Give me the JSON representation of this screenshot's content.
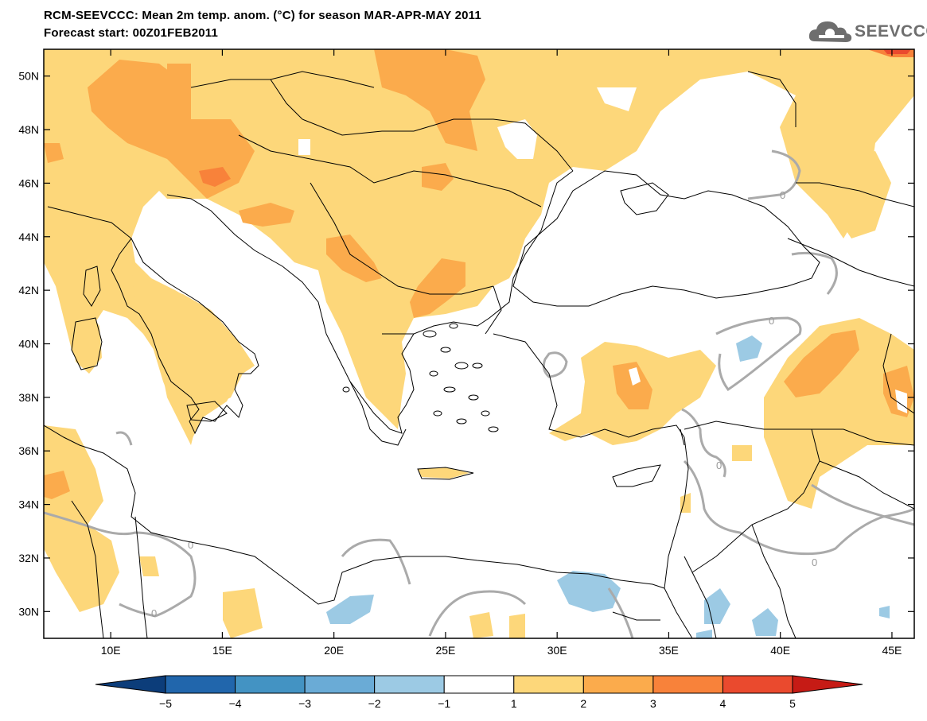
{
  "header": {
    "title_line1": "RCM-SEEVCCC: Mean 2m temp. anom. (°C) for season MAR-APR-MAY 2011",
    "title_line2": "Forecast start: 00Z01FEB2011"
  },
  "logo": {
    "text": "SEEVCCC",
    "icon": "cloud-icon"
  },
  "map": {
    "lon_range": [
      7,
      46
    ],
    "lat_range": [
      29,
      51
    ],
    "lat_ticks": [
      {
        "value": 50,
        "label": "50N"
      },
      {
        "value": 48,
        "label": "48N"
      },
      {
        "value": 46,
        "label": "46N"
      },
      {
        "value": 44,
        "label": "44N"
      },
      {
        "value": 42,
        "label": "42N"
      },
      {
        "value": 40,
        "label": "40N"
      },
      {
        "value": 38,
        "label": "38N"
      },
      {
        "value": 36,
        "label": "36N"
      },
      {
        "value": 34,
        "label": "34N"
      },
      {
        "value": 32,
        "label": "32N"
      },
      {
        "value": 30,
        "label": "30N"
      }
    ],
    "lon_ticks": [
      {
        "value": 10,
        "label": "10E"
      },
      {
        "value": 15,
        "label": "15E"
      },
      {
        "value": 20,
        "label": "20E"
      },
      {
        "value": 25,
        "label": "25E"
      },
      {
        "value": 30,
        "label": "30E"
      },
      {
        "value": 35,
        "label": "35E"
      },
      {
        "value": 40,
        "label": "40E"
      },
      {
        "value": 45,
        "label": "45E"
      }
    ],
    "contour_label": "0",
    "colors": {
      "anomaly_1_2": "#fdd77a",
      "anomaly_2_3": "#fbab4c",
      "anomaly_3_4": "#f8823a",
      "anomaly_4_5": "#ea4a2e",
      "anomaly_neg1_neg2": "#9ccae4",
      "zero_contour": "#aaaaaa",
      "coastline": "#000000"
    }
  },
  "colorbar": {
    "boundaries": [
      "-5",
      "-4",
      "-3",
      "-2",
      "-1",
      "1",
      "2",
      "3",
      "4",
      "5"
    ],
    "colors": [
      "#0c3d7a",
      "#2166ac",
      "#4393c3",
      "#6aabd6",
      "#9ccae4",
      "#ffffff",
      "#fdd77a",
      "#fbab4c",
      "#f8823a",
      "#ea4a2e",
      "#c61b15"
    ]
  }
}
